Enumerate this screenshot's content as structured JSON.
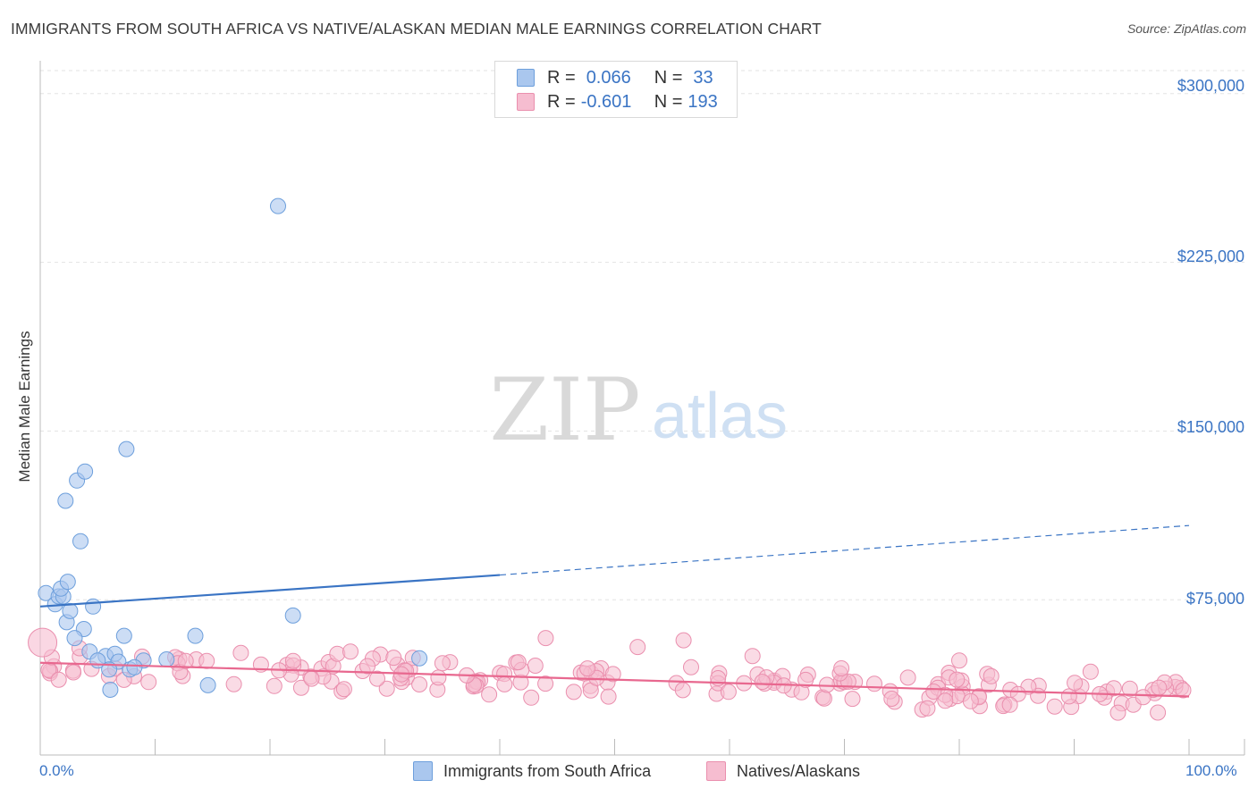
{
  "title": "IMMIGRANTS FROM SOUTH AFRICA VS NATIVE/ALASKAN MEDIAN MALE EARNINGS CORRELATION CHART",
  "source": "Source: ZipAtlas.com",
  "watermark": {
    "zip": "ZIP",
    "atlas": "atlas"
  },
  "colors": {
    "blue": "#3a74c4",
    "blue_fill": "#aac7ee",
    "blue_stroke": "#6d9fdc",
    "pink": "#e8688f",
    "pink_fill": "#f6bdd0",
    "pink_stroke": "#ea8fae",
    "grid": "#e3e3e3"
  },
  "legend_top": {
    "rows": [
      {
        "r_label": "R =",
        "r_value": "0.066",
        "n_label": "N =",
        "n_value": "33"
      },
      {
        "r_label": "R =",
        "r_value": "-0.601",
        "n_label": "N =",
        "n_value": "193"
      }
    ]
  },
  "chart_data": {
    "type": "scatter",
    "title": "IMMIGRANTS FROM SOUTH AFRICA VS NATIVE/ALASKAN MEDIAN MALE EARNINGS CORRELATION CHART",
    "xlabel": "",
    "ylabel": "Median Male Earnings",
    "xlim": [
      0,
      100
    ],
    "ylim": [
      6000,
      313000
    ],
    "x_tick_labels": [
      "0.0%",
      "100.0%"
    ],
    "y_ticks": [
      75000,
      150000,
      225000,
      300000
    ],
    "y_tick_labels": [
      "$75,000",
      "$150,000",
      "$225,000",
      "$300,000"
    ],
    "grid": true,
    "series": [
      {
        "name": "Immigrants from South Africa",
        "color": "blue",
        "points": [
          [
            0.5,
            78000
          ],
          [
            1.3,
            73000
          ],
          [
            1.6,
            76500
          ],
          [
            2.0,
            76500
          ],
          [
            1.8,
            80000
          ],
          [
            2.4,
            83000
          ],
          [
            2.2,
            119000
          ],
          [
            3.2,
            128000
          ],
          [
            3.9,
            132000
          ],
          [
            3.5,
            101000
          ],
          [
            7.5,
            142000
          ],
          [
            20.7,
            250000
          ],
          [
            2.3,
            65000
          ],
          [
            2.6,
            70000
          ],
          [
            3.8,
            62000
          ],
          [
            4.6,
            72000
          ],
          [
            3.0,
            58000
          ],
          [
            7.3,
            59000
          ],
          [
            13.5,
            59000
          ],
          [
            22.0,
            68000
          ],
          [
            4.3,
            52000
          ],
          [
            5.7,
            50000
          ],
          [
            6.5,
            51000
          ],
          [
            9.0,
            48000
          ],
          [
            11.0,
            48500
          ],
          [
            5.0,
            48000
          ],
          [
            6.8,
            47500
          ],
          [
            7.8,
            44000
          ],
          [
            8.2,
            45000
          ],
          [
            6.0,
            44000
          ],
          [
            14.6,
            37000
          ],
          [
            6.1,
            35000
          ],
          [
            33.0,
            49000
          ]
        ],
        "trend": {
          "x_start": 0,
          "y_start": 72000,
          "x_solid_end": 40,
          "y_solid_end": 86000,
          "x_end": 100,
          "y_end": 108000
        }
      },
      {
        "name": "Natives/Alaskans",
        "color": "pink",
        "trend": {
          "x_start": 0,
          "y_start": 47000,
          "x_end": 100,
          "y_end": 32000
        }
      }
    ]
  },
  "bottom_legend": [
    {
      "label": "Immigrants from South Africa",
      "color": "blue"
    },
    {
      "label": "Natives/Alaskans",
      "color": "pink"
    }
  ]
}
